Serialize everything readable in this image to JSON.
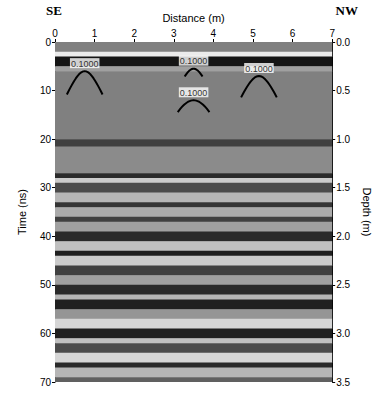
{
  "chart_data": {
    "type": "radargram",
    "corner_labels": [
      "SE",
      "NW"
    ],
    "xlabel": "Distance (m)",
    "ylabel": "Time (ns)",
    "y2label": "Depth (m)",
    "xlim": [
      0,
      7
    ],
    "xticks": [
      0,
      1,
      2,
      3,
      4,
      5,
      6,
      7
    ],
    "ylim": [
      0,
      70
    ],
    "yticks": [
      0,
      10,
      20,
      30,
      40,
      50,
      60,
      70
    ],
    "y2lim": [
      0,
      3.5
    ],
    "y2ticks": [
      {
        "value": 0,
        "label": "0.0"
      },
      {
        "value": 0.5,
        "label": "0.5"
      },
      {
        "value": 1,
        "label": "1.0"
      },
      {
        "value": 1.5,
        "label": "1.5"
      },
      {
        "value": 2,
        "label": "2.0"
      },
      {
        "value": 2.5,
        "label": "2.5"
      },
      {
        "value": 3,
        "label": "3.0"
      },
      {
        "value": 3.5,
        "label": "3.5"
      }
    ],
    "grid": false,
    "bands": {
      "start": [
        0,
        2,
        3,
        5,
        6,
        20,
        21.5,
        27,
        28,
        29,
        31,
        33,
        34,
        36,
        37,
        39,
        41,
        43,
        44,
        46,
        48,
        50,
        52,
        53,
        55,
        57,
        59,
        61,
        62,
        64,
        66,
        67,
        69
      ],
      "end": [
        2,
        3,
        5,
        6,
        20,
        21.5,
        27,
        28,
        29,
        31,
        33,
        34,
        36,
        37,
        39,
        41,
        43,
        44,
        46,
        48,
        50,
        52,
        53,
        55,
        57,
        59,
        61,
        62,
        64,
        66,
        67,
        69,
        70
      ],
      "amplitude": [
        0,
        1,
        -1,
        0.3,
        0,
        -0.6,
        0.1,
        -0.8,
        0.7,
        -0.5,
        0.5,
        -0.7,
        0.4,
        -0.6,
        0.3,
        -0.8,
        0.6,
        -0.9,
        0.7,
        -0.6,
        0.3,
        -0.8,
        0.5,
        -0.9,
        0.2,
        0.8,
        -0.9,
        0.6,
        -0.5,
        0.8,
        -0.8,
        0.5,
        -0.3
      ]
    },
    "hyperbolas": [
      {
        "x": 0.75,
        "time": 6,
        "half_width": 0.45,
        "velocity": 0.1,
        "label": "0.1000"
      },
      {
        "x": 3.5,
        "time": 5.5,
        "half_width": 0.225,
        "velocity": 0.1,
        "label": "0.1000"
      },
      {
        "x": 3.5,
        "time": 12,
        "half_width": 0.4,
        "velocity": 0.1,
        "label": "0.1000"
      },
      {
        "x": 5.15,
        "time": 7,
        "half_width": 0.45,
        "velocity": 0.1,
        "label": "0.1000"
      }
    ]
  }
}
